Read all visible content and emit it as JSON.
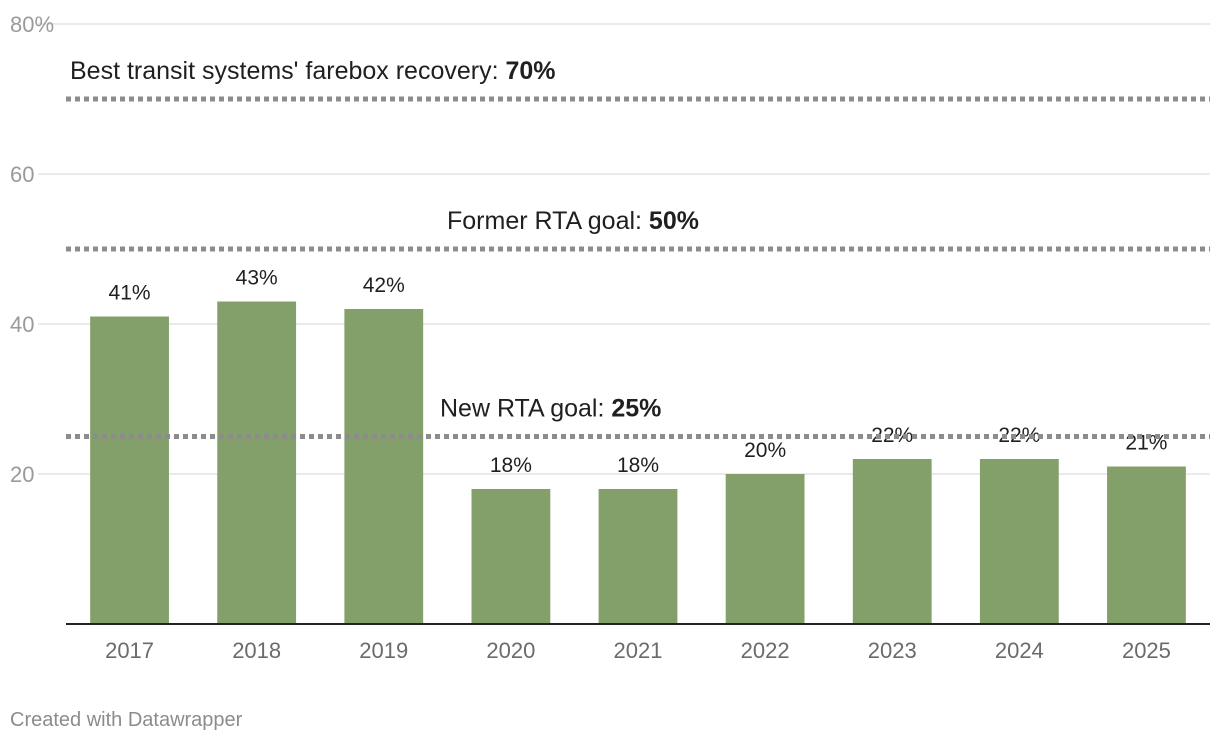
{
  "chart_data": {
    "type": "bar",
    "categories": [
      "2017",
      "2018",
      "2019",
      "2020",
      "2021",
      "2022",
      "2023",
      "2024",
      "2025"
    ],
    "values": [
      41,
      43,
      42,
      18,
      18,
      20,
      22,
      22,
      21
    ],
    "value_labels": [
      "41%",
      "43%",
      "42%",
      "18%",
      "18%",
      "20%",
      "22%",
      "22%",
      "21%"
    ],
    "ylim": [
      0,
      80
    ],
    "yticks": [
      {
        "value": 20,
        "label": "20"
      },
      {
        "value": 40,
        "label": "40"
      },
      {
        "value": 60,
        "label": "60"
      },
      {
        "value": 80,
        "label": "80%"
      }
    ],
    "reference_lines": [
      {
        "value": 70,
        "label": "Best transit systems' farebox recovery: ",
        "value_label": "70%"
      },
      {
        "value": 50,
        "label": "Former RTA goal: ",
        "value_label": "50%"
      },
      {
        "value": 25,
        "label": "New RTA goal: ",
        "value_label": "25%"
      }
    ],
    "bar_color": "#84a06a",
    "grid": true,
    "title": "",
    "xlabel": "",
    "ylabel": ""
  },
  "footer": {
    "credit": "Created with Datawrapper"
  }
}
